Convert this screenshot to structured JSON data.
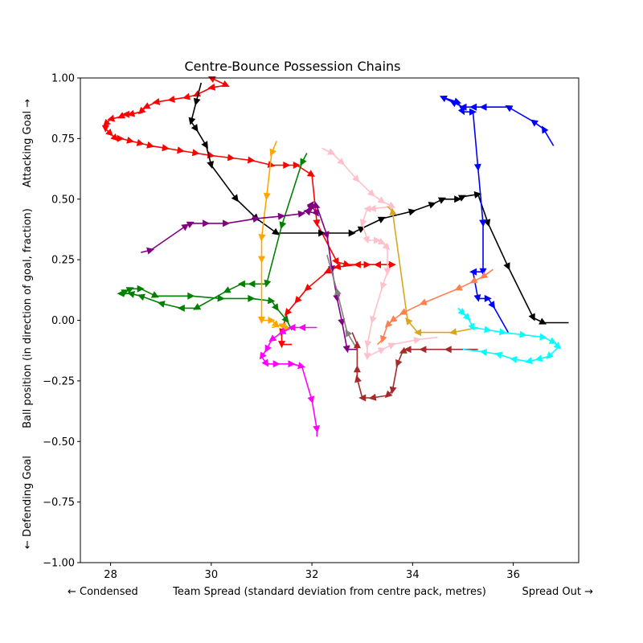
{
  "chart_data": {
    "type": "line",
    "title": "Centre-Bounce Possession Chains",
    "xlabel": "Team Spread (standard deviation from centre pack, metres)",
    "xlabel_left": "← Condensed",
    "xlabel_right": "Spread Out →",
    "ylabel": "Ball position (in direction of goal, fraction)",
    "ylabel_top": "Attacking Goal →",
    "ylabel_bottom": "← Defending Goal",
    "xlim": [
      27.4,
      37.3
    ],
    "ylim": [
      -1.0,
      1.0
    ],
    "xticks": [
      "28",
      "30",
      "32",
      "34",
      "36"
    ],
    "xtick_values": [
      28,
      30,
      32,
      34,
      36
    ],
    "yticks": [
      "−1.00",
      "−0.75",
      "−0.50",
      "−0.25",
      "0.00",
      "0.25",
      "0.50",
      "0.75",
      "1.00"
    ],
    "ytick_values": [
      -1.0,
      -0.75,
      -0.5,
      -0.25,
      0.0,
      0.25,
      0.5,
      0.75,
      1.0
    ],
    "grid": false,
    "legend": "none",
    "series": [
      {
        "color": "#ff0000",
        "points": [
          [
            30.1,
            0.99
          ],
          [
            30.0,
            1.0
          ],
          [
            30.3,
            0.97
          ],
          [
            30.0,
            0.96
          ],
          [
            29.7,
            0.93
          ],
          [
            29.5,
            0.92
          ],
          [
            29.2,
            0.91
          ],
          [
            28.9,
            0.9
          ],
          [
            28.7,
            0.88
          ],
          [
            28.6,
            0.86
          ],
          [
            28.4,
            0.85
          ],
          [
            28.3,
            0.85
          ],
          [
            28.2,
            0.84
          ],
          [
            28.0,
            0.83
          ],
          [
            27.9,
            0.81
          ],
          [
            27.9,
            0.79
          ],
          [
            28.0,
            0.77
          ],
          [
            28.1,
            0.75
          ],
          [
            28.2,
            0.75
          ],
          [
            28.4,
            0.74
          ],
          [
            28.6,
            0.73
          ],
          [
            28.8,
            0.72
          ],
          [
            29.1,
            0.71
          ],
          [
            29.4,
            0.7
          ],
          [
            29.7,
            0.69
          ],
          [
            30.0,
            0.68
          ],
          [
            30.4,
            0.67
          ],
          [
            30.8,
            0.66
          ],
          [
            31.2,
            0.64
          ],
          [
            31.5,
            0.64
          ],
          [
            31.7,
            0.64
          ],
          [
            32.0,
            0.6
          ],
          [
            32.1,
            0.4
          ],
          [
            32.5,
            0.24
          ],
          [
            32.7,
            0.23
          ],
          [
            33.1,
            0.23
          ],
          [
            33.6,
            0.23
          ],
          [
            33.3,
            0.23
          ],
          [
            32.9,
            0.23
          ],
          [
            32.5,
            0.22
          ],
          [
            32.3,
            0.2
          ],
          [
            31.9,
            0.13
          ],
          [
            31.7,
            0.08
          ],
          [
            31.5,
            0.03
          ],
          [
            31.4,
            -0.05
          ],
          [
            31.4,
            -0.1
          ],
          [
            31.6,
            -0.1
          ]
        ]
      },
      {
        "color": "#000000",
        "points": [
          [
            29.8,
            0.98
          ],
          [
            29.7,
            0.9
          ],
          [
            29.6,
            0.82
          ],
          [
            29.7,
            0.79
          ],
          [
            29.9,
            0.72
          ],
          [
            30.0,
            0.64
          ],
          [
            30.5,
            0.5
          ],
          [
            30.9,
            0.42
          ],
          [
            31.3,
            0.36
          ],
          [
            32.2,
            0.36
          ],
          [
            32.8,
            0.36
          ],
          [
            33.0,
            0.38
          ],
          [
            33.4,
            0.42
          ],
          [
            34.0,
            0.45
          ],
          [
            34.4,
            0.48
          ],
          [
            34.6,
            0.5
          ],
          [
            34.9,
            0.5
          ],
          [
            35.0,
            0.51
          ],
          [
            35.3,
            0.52
          ],
          [
            35.5,
            0.4
          ],
          [
            35.9,
            0.22
          ],
          [
            36.4,
            0.01
          ],
          [
            36.6,
            -0.01
          ],
          [
            37.1,
            -0.01
          ]
        ]
      },
      {
        "color": "#0000ff",
        "points": [
          [
            36.8,
            0.72
          ],
          [
            36.6,
            0.79
          ],
          [
            36.4,
            0.82
          ],
          [
            35.9,
            0.88
          ],
          [
            35.4,
            0.88
          ],
          [
            35.2,
            0.88
          ],
          [
            35.0,
            0.88
          ],
          [
            34.8,
            0.9
          ],
          [
            34.6,
            0.92
          ],
          [
            34.9,
            0.9
          ],
          [
            35.0,
            0.86
          ],
          [
            35.2,
            0.86
          ],
          [
            35.3,
            0.63
          ],
          [
            35.4,
            0.4
          ],
          [
            35.4,
            0.2
          ],
          [
            35.2,
            0.2
          ],
          [
            35.3,
            0.09
          ],
          [
            35.5,
            0.09
          ],
          [
            35.6,
            0.06
          ],
          [
            35.9,
            -0.05
          ]
        ]
      },
      {
        "color": "#008000",
        "points": [
          [
            31.9,
            0.69
          ],
          [
            31.8,
            0.65
          ],
          [
            31.4,
            0.39
          ],
          [
            31.1,
            0.15
          ],
          [
            30.8,
            0.15
          ],
          [
            30.6,
            0.15
          ],
          [
            30.3,
            0.12
          ],
          [
            29.7,
            0.05
          ],
          [
            29.4,
            0.05
          ],
          [
            29.0,
            0.07
          ],
          [
            28.6,
            0.1
          ],
          [
            28.4,
            0.11
          ],
          [
            28.2,
            0.11
          ],
          [
            28.3,
            0.12
          ],
          [
            28.4,
            0.13
          ],
          [
            28.6,
            0.13
          ],
          [
            28.9,
            0.1
          ],
          [
            29.6,
            0.1
          ],
          [
            30.2,
            0.09
          ],
          [
            30.8,
            0.09
          ],
          [
            31.2,
            0.08
          ],
          [
            31.3,
            0.05
          ],
          [
            31.5,
            0.0
          ],
          [
            31.6,
            -0.04
          ]
        ]
      },
      {
        "color": "#ffa500",
        "points": [
          [
            31.3,
            0.74
          ],
          [
            31.2,
            0.69
          ],
          [
            31.1,
            0.51
          ],
          [
            31.0,
            0.34
          ],
          [
            31.0,
            0.25
          ],
          [
            31.0,
            0.0
          ],
          [
            31.2,
            0.0
          ],
          [
            31.3,
            -0.02
          ],
          [
            31.5,
            -0.03
          ],
          [
            31.4,
            -0.02
          ],
          [
            31.2,
            -0.03
          ]
        ]
      },
      {
        "color": "#800080",
        "points": [
          [
            28.6,
            0.28
          ],
          [
            28.8,
            0.29
          ],
          [
            29.5,
            0.39
          ],
          [
            29.6,
            0.4
          ],
          [
            29.9,
            0.4
          ],
          [
            30.3,
            0.4
          ],
          [
            30.9,
            0.42
          ],
          [
            31.4,
            0.43
          ],
          [
            31.8,
            0.44
          ],
          [
            32.0,
            0.47
          ],
          [
            32.1,
            0.44
          ],
          [
            31.9,
            0.45
          ],
          [
            32.0,
            0.48
          ],
          [
            32.1,
            0.47
          ],
          [
            32.3,
            0.35
          ],
          [
            32.4,
            0.21
          ],
          [
            32.5,
            0.09
          ],
          [
            32.6,
            -0.01
          ],
          [
            32.7,
            -0.12
          ],
          [
            32.9,
            -0.12
          ]
        ]
      },
      {
        "color": "#808080",
        "points": [
          [
            32.9,
            -0.12
          ],
          [
            32.7,
            -0.05
          ],
          [
            32.5,
            0.12
          ],
          [
            32.3,
            0.27
          ]
        ]
      },
      {
        "color": "#ff00ff",
        "points": [
          [
            32.1,
            -0.03
          ],
          [
            31.8,
            -0.03
          ],
          [
            31.6,
            -0.03
          ],
          [
            31.4,
            -0.05
          ],
          [
            31.2,
            -0.08
          ],
          [
            31.1,
            -0.12
          ],
          [
            31.0,
            -0.15
          ],
          [
            31.1,
            -0.18
          ],
          [
            31.3,
            -0.18
          ],
          [
            31.6,
            -0.18
          ],
          [
            31.8,
            -0.19
          ],
          [
            32.0,
            -0.33
          ],
          [
            32.1,
            -0.45
          ],
          [
            32.1,
            -0.48
          ]
        ]
      },
      {
        "color": "#ffc0cb",
        "points": [
          [
            32.2,
            0.71
          ],
          [
            32.4,
            0.69
          ],
          [
            32.6,
            0.65
          ],
          [
            32.9,
            0.58
          ],
          [
            33.2,
            0.52
          ],
          [
            33.4,
            0.49
          ],
          [
            33.6,
            0.47
          ],
          [
            33.2,
            0.46
          ],
          [
            33.1,
            0.46
          ],
          [
            33.0,
            0.4
          ],
          [
            33.1,
            0.33
          ],
          [
            33.3,
            0.33
          ],
          [
            33.4,
            0.32
          ],
          [
            33.5,
            0.3
          ],
          [
            33.5,
            0.2
          ],
          [
            33.4,
            0.14
          ],
          [
            33.2,
            0.0
          ],
          [
            33.1,
            -0.1
          ],
          [
            33.1,
            -0.15
          ],
          [
            33.4,
            -0.12
          ],
          [
            33.6,
            -0.1
          ],
          [
            34.1,
            -0.08
          ],
          [
            34.5,
            -0.07
          ]
        ]
      },
      {
        "color": "#daa520",
        "points": [
          [
            35.3,
            -0.03
          ],
          [
            34.8,
            -0.05
          ],
          [
            34.1,
            -0.05
          ],
          [
            33.9,
            0.0
          ],
          [
            33.6,
            0.45
          ],
          [
            33.5,
            0.47
          ]
        ]
      },
      {
        "color": "#ff7f50",
        "points": [
          [
            35.6,
            0.21
          ],
          [
            35.4,
            0.18
          ],
          [
            35.2,
            0.16
          ],
          [
            34.9,
            0.13
          ],
          [
            34.2,
            0.07
          ],
          [
            33.8,
            0.03
          ],
          [
            33.6,
            0.0
          ],
          [
            33.5,
            -0.02
          ],
          [
            33.4,
            -0.08
          ],
          [
            33.3,
            -0.1
          ]
        ]
      },
      {
        "color": "#a52a2a",
        "points": [
          [
            35.3,
            -0.12
          ],
          [
            34.7,
            -0.12
          ],
          [
            34.2,
            -0.12
          ],
          [
            33.9,
            -0.12
          ],
          [
            33.8,
            -0.13
          ],
          [
            33.7,
            -0.18
          ],
          [
            33.6,
            -0.29
          ],
          [
            33.5,
            -0.31
          ],
          [
            33.2,
            -0.32
          ],
          [
            33.0,
            -0.32
          ],
          [
            32.9,
            -0.24
          ],
          [
            32.9,
            -0.2
          ],
          [
            32.9,
            -0.1
          ],
          [
            32.8,
            -0.05
          ]
        ]
      },
      {
        "color": "#00ffff",
        "points": [
          [
            34.9,
            0.05
          ],
          [
            35.0,
            0.03
          ],
          [
            35.1,
            0.01
          ],
          [
            35.2,
            -0.03
          ],
          [
            35.5,
            -0.04
          ],
          [
            35.8,
            -0.05
          ],
          [
            36.2,
            -0.06
          ],
          [
            36.6,
            -0.07
          ],
          [
            36.8,
            -0.09
          ],
          [
            36.9,
            -0.11
          ],
          [
            36.7,
            -0.15
          ],
          [
            36.5,
            -0.16
          ],
          [
            36.3,
            -0.17
          ],
          [
            36.0,
            -0.16
          ],
          [
            35.7,
            -0.14
          ],
          [
            35.4,
            -0.13
          ],
          [
            35.0,
            -0.12
          ]
        ]
      }
    ]
  }
}
